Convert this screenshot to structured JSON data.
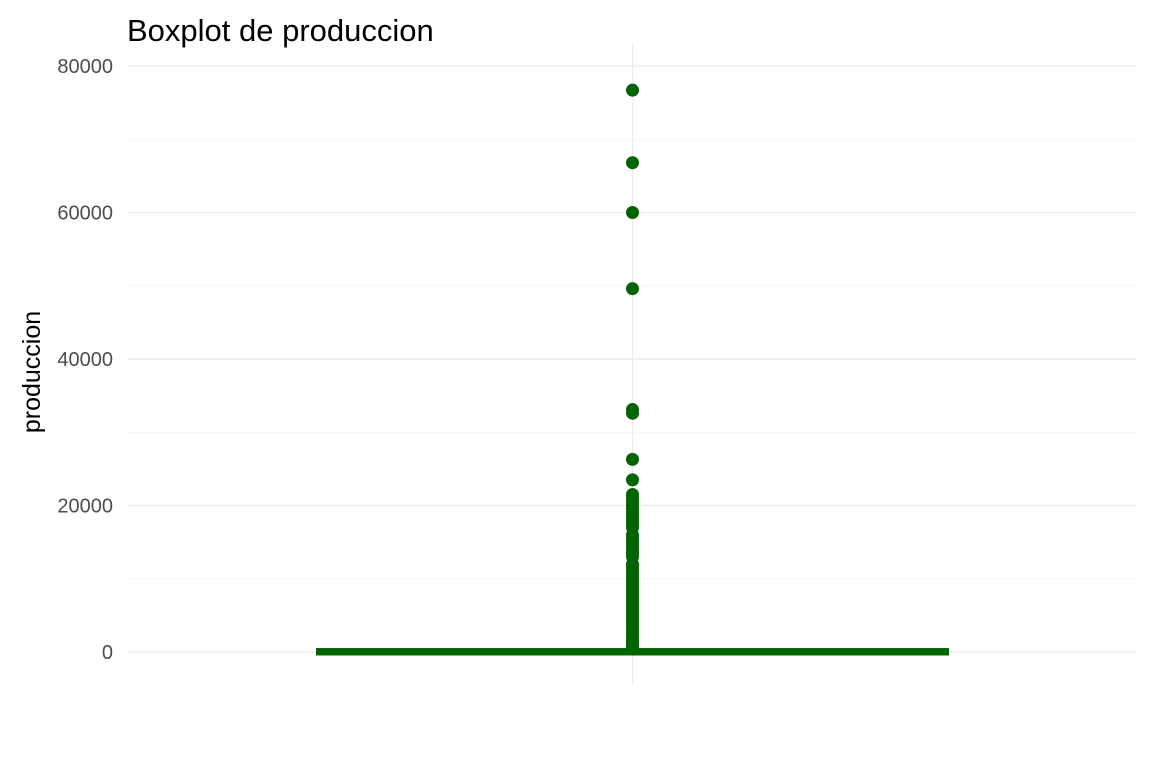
{
  "chart_data": {
    "type": "boxplot",
    "title": "Boxplot de produccion",
    "xlabel": "",
    "ylabel": "produccion",
    "ylim": [
      -3500,
      80000
    ],
    "yticks": [
      0,
      20000,
      40000,
      60000,
      80000
    ],
    "tick_labels": [
      "0",
      "20000",
      "40000",
      "60000",
      "80000"
    ],
    "grid": true,
    "color": "#006400",
    "box": {
      "min": 0,
      "q1": 5,
      "median": 20,
      "q3": 60,
      "max": 140
    },
    "outliers": [
      76700,
      66800,
      60000,
      49600,
      33100,
      32600,
      26300,
      23500,
      21500,
      21000,
      20500,
      20000,
      19500,
      19000,
      18500,
      18000,
      17500,
      17000,
      16000,
      15500,
      15000,
      14500,
      14000,
      13500,
      13000,
      12000,
      11500,
      11000,
      10500,
      10000,
      9500,
      9000,
      8500,
      8000,
      7500,
      7000,
      6500,
      6000,
      5500,
      5000,
      4500,
      4000,
      3500,
      3000,
      2500,
      2000,
      1500,
      1200,
      900,
      600,
      400
    ]
  }
}
